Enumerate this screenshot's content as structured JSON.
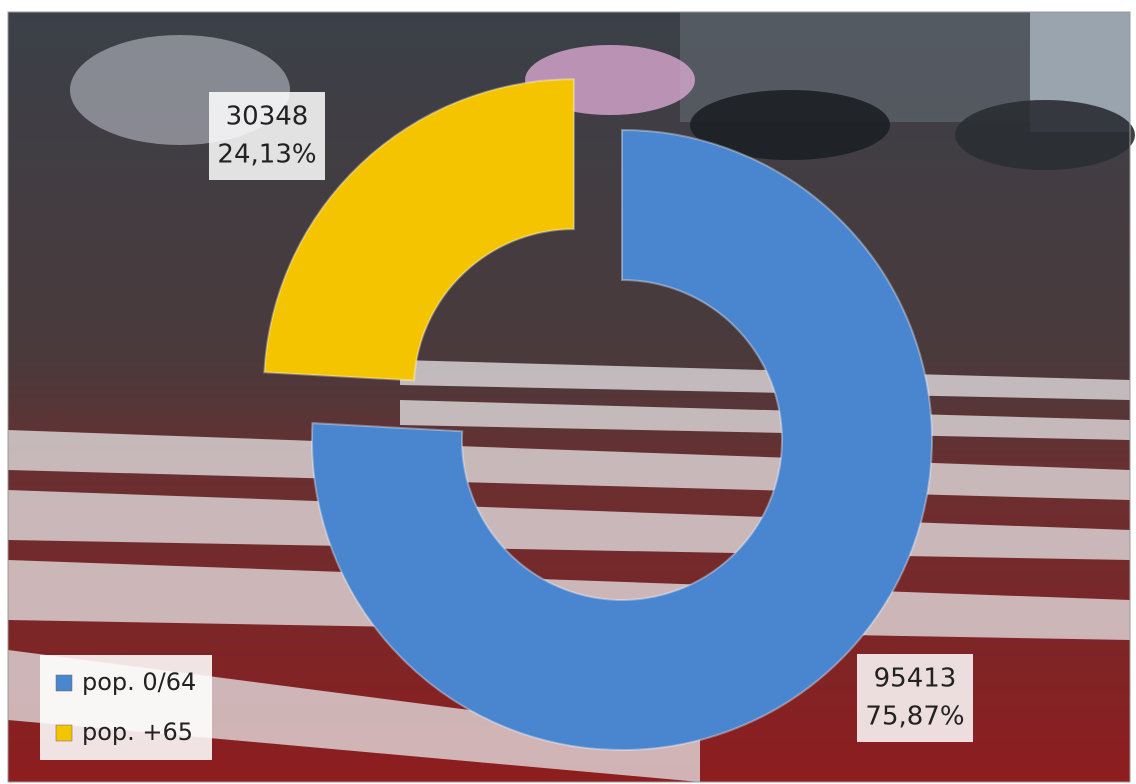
{
  "chart_data": {
    "type": "donut",
    "series": [
      {
        "name": "pop. 0/64",
        "color": "#4a86cf"
      },
      {
        "name": "pop. +65",
        "color": "#f5c400"
      }
    ],
    "values": [
      95413,
      30348
    ],
    "percentages": [
      75.87,
      24.13
    ],
    "percentage_labels": [
      "75,87%",
      "24,13%"
    ],
    "legend": "bottom-left"
  }
}
